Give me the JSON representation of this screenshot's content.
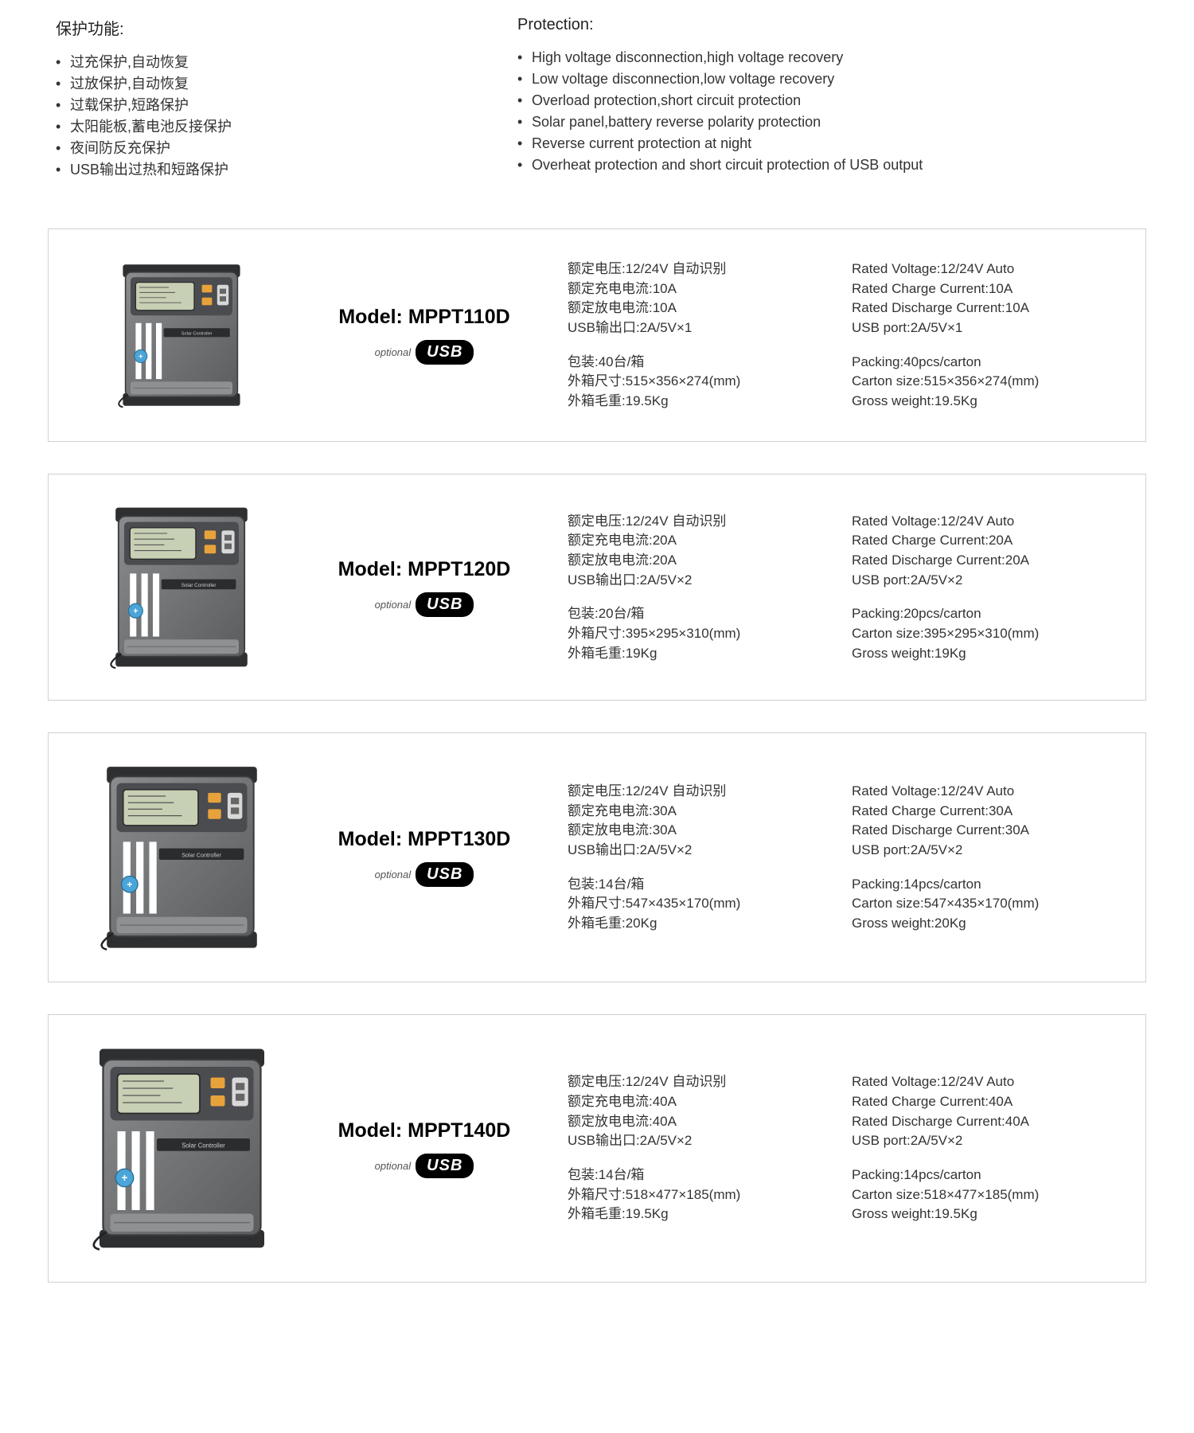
{
  "protection": {
    "title_cn": "保护功能:",
    "title_en": "Protection:",
    "items_cn": [
      "过充保护,自动恢复",
      "过放保护,自动恢复",
      "过载保护,短路保护",
      "太阳能板,蓄电池反接保护",
      "夜间防反充保护",
      "USB输出过热和短路保护"
    ],
    "items_en": [
      "High voltage disconnection,high voltage recovery",
      "Low voltage disconnection,low voltage recovery",
      "Overload protection,short circuit protection",
      "Solar panel,battery reverse polarity protection",
      "Reverse current protection at night",
      "Overheat protection and short circuit protection of USB output"
    ]
  },
  "usb_label": "optional",
  "usb_logo": "USB",
  "products": [
    {
      "model": "Model: MPPT110D",
      "image_size": 160,
      "specs_cn_a": [
        "额定电压:12/24V 自动识别",
        "额定充电电流:10A",
        "额定放电电流:10A",
        "USB输出口:2A/5V×1"
      ],
      "specs_cn_b": [
        "包装:40台/箱",
        "外箱尺寸:515×356×274(mm)",
        "外箱毛重:19.5Kg"
      ],
      "specs_en_a": [
        "Rated Voltage:12/24V Auto",
        "Rated Charge Current:10A",
        "Rated Discharge Current:10A",
        "USB port:2A/5V×1"
      ],
      "specs_en_b": [
        "Packing:40pcs/carton",
        "Carton size:515×356×274(mm)",
        "Gross weight:19.5Kg"
      ]
    },
    {
      "model": "Model: MPPT120D",
      "image_size": 180,
      "specs_cn_a": [
        "额定电压:12/24V 自动识别",
        "额定充电电流:20A",
        "额定放电电流:20A",
        "USB输出口:2A/5V×2"
      ],
      "specs_cn_b": [
        "包装:20台/箱",
        "外箱尺寸:395×295×310(mm)",
        "外箱毛重:19Kg"
      ],
      "specs_en_a": [
        "Rated Voltage:12/24V Auto",
        "Rated Charge Current:20A",
        "Rated Discharge Current:20A",
        "USB port:2A/5V×2"
      ],
      "specs_en_b": [
        "Packing:20pcs/carton",
        "Carton size:395×295×310(mm)",
        "Gross weight:19Kg"
      ]
    },
    {
      "model": "Model: MPPT130D",
      "image_size": 205,
      "specs_cn_a": [
        "额定电压:12/24V 自动识别",
        "额定充电电流:30A",
        "额定放电电流:30A",
        "USB输出口:2A/5V×2"
      ],
      "specs_cn_b": [
        "包装:14台/箱",
        "外箱尺寸:547×435×170(mm)",
        "外箱毛重:20Kg"
      ],
      "specs_en_a": [
        "Rated Voltage:12/24V Auto",
        "Rated Charge Current:30A",
        "Rated Discharge Current:30A",
        "USB port:2A/5V×2"
      ],
      "specs_en_b": [
        "Packing:14pcs/carton",
        "Carton size:547×435×170(mm)",
        "Gross weight:20Kg"
      ]
    },
    {
      "model": "Model: MPPT140D",
      "image_size": 225,
      "specs_cn_a": [
        "额定电压:12/24V 自动识别",
        "额定充电电流:40A",
        "额定放电电流:40A",
        "USB输出口:2A/5V×2"
      ],
      "specs_cn_b": [
        "包装:14台/箱",
        "外箱尺寸:518×477×185(mm)",
        "外箱毛重:19.5Kg"
      ],
      "specs_en_a": [
        "Rated Voltage:12/24V Auto",
        "Rated Charge Current:40A",
        "Rated Discharge Current:40A",
        "USB port:2A/5V×2"
      ],
      "specs_en_b": [
        "Packing:14pcs/carton",
        "Carton size:518×477×185(mm)",
        "Gross weight:19.5Kg"
      ]
    }
  ],
  "colors": {
    "card_border": "#d0d0d0",
    "text": "#333333",
    "device_body": "#737578",
    "device_dark": "#4a4c4f",
    "device_lcd": "#c7cfb4",
    "device_stripe": "#ffffff",
    "device_orange": "#e8a23c",
    "device_blue": "#4aa5d8"
  }
}
